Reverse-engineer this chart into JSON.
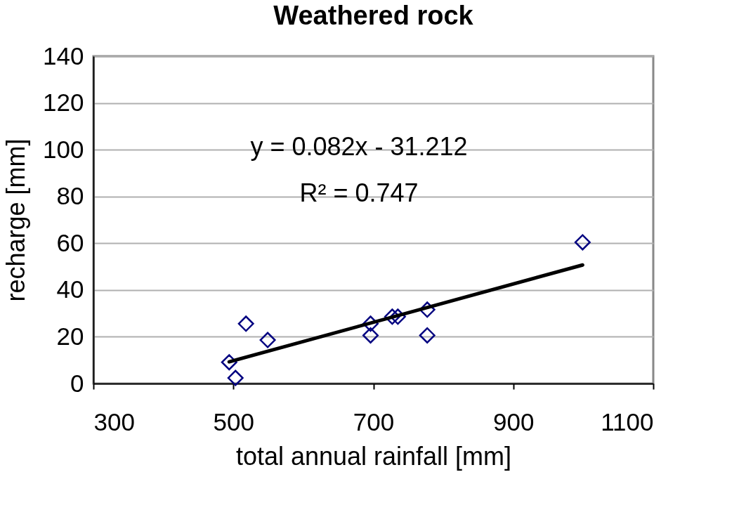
{
  "chart_data": {
    "type": "scatter",
    "title": "Weathered rock",
    "xlabel": "total annual rainfall [mm]",
    "ylabel": "recharge [mm]",
    "xlim": [
      300,
      1100
    ],
    "xticks": [
      300,
      500,
      700,
      900,
      1100
    ],
    "ylim": [
      0,
      140
    ],
    "yticks": [
      0,
      20,
      40,
      60,
      80,
      100,
      120,
      140
    ],
    "grid": "y",
    "marker": "diamond",
    "series": [
      {
        "color": "#000080",
        "x": [
          494,
          503,
          518,
          549,
          696,
          696,
          727,
          735,
          777,
          777,
          999
        ],
        "values": [
          9.1,
          2.4,
          25.6,
          18.6,
          25.6,
          20.6,
          28.6,
          28.6,
          31.6,
          20.6,
          60.4
        ]
      },
      {
        "type": "line",
        "marker": "none",
        "color": "#000000",
        "line_style": "solid",
        "x": [
          494,
          999
        ],
        "values": [
          9.3,
          50.7
        ]
      }
    ],
    "annotations": [
      "y = 0.082x - 31.212",
      "R² = 0.747"
    ]
  }
}
